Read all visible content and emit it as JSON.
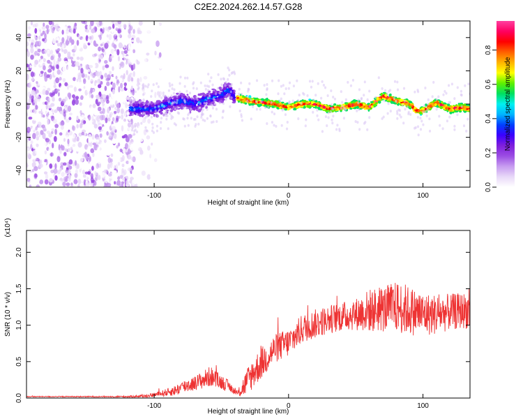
{
  "figure_title": "C2E2.2024.262.14.57.G28",
  "chart_data": [
    {
      "type": "heatmap",
      "xlabel": "Height of straight line (km)",
      "ylabel": "Frequency (Hz)",
      "xlim": [
        -195,
        135
      ],
      "ylim": [
        -50,
        50
      ],
      "xticks": [
        -100,
        0,
        100
      ],
      "yticks": [
        -40,
        -20,
        0,
        20,
        40
      ],
      "colorbar": {
        "label": "Normalized spectral amplitude",
        "range": [
          0,
          0.97
        ],
        "ticks": [
          "0.0",
          "0.2",
          "0.4",
          "0.6",
          "0.8"
        ],
        "colormap": [
          "#ffffff",
          "#e8d8f8",
          "#c79cf0",
          "#9b4de3",
          "#7f1fdc",
          "#3b00ff",
          "#0040ff",
          "#00b4ff",
          "#00f0f0",
          "#00e060",
          "#5ef000",
          "#ffff00",
          "#ffb400",
          "#ff6000",
          "#ff0000",
          "#ff0060",
          "#ff40a0"
        ]
      },
      "regions": [
        {
          "name": "noise",
          "x": [
            -195,
            -115
          ],
          "freq_spread": [
            -50,
            50
          ],
          "amplitude": [
            0.0,
            0.2
          ]
        },
        {
          "name": "sparse",
          "x": [
            -120,
            -95
          ],
          "freq_spread": [
            -50,
            50
          ],
          "amplitude": [
            0.0,
            0.1
          ]
        },
        {
          "name": "onset",
          "x": [
            -118,
            -40
          ],
          "freq_center": [
            -3,
            12
          ],
          "amplitude": [
            0.15,
            0.45
          ]
        },
        {
          "name": "track",
          "x": [
            -38,
            135
          ],
          "freq_center": [
            -5,
            5
          ],
          "amplitude": [
            0.5,
            0.97
          ]
        }
      ],
      "ridge": {
        "x": [
          -115,
          -100,
          -90,
          -80,
          -70,
          -60,
          -50,
          -45,
          -40,
          -35,
          -30,
          -20,
          -10,
          0,
          10,
          20,
          30,
          40,
          50,
          60,
          70,
          80,
          90,
          95,
          100,
          110,
          120,
          130,
          135
        ],
        "freq": [
          -3,
          -3,
          0,
          2,
          0,
          3,
          5,
          9,
          4,
          3,
          2,
          1,
          0,
          -2,
          0,
          0,
          -3,
          -2,
          0,
          -2,
          5,
          2,
          0,
          -4,
          -4,
          1,
          -3,
          -2,
          -3
        ]
      }
    },
    {
      "type": "line",
      "xlabel": "Height of straight line (km)",
      "ylabel": "SNR (10 * v/v)",
      "yscale_label": "(x10⁴)",
      "xlim": [
        -195,
        135
      ],
      "ylim": [
        0,
        2.3
      ],
      "xticks": [
        -100,
        0,
        100
      ],
      "yticks": [
        "0.0",
        "0.5",
        "1.0",
        "1.5",
        "2.0"
      ],
      "color": "#ee3333",
      "series": [
        {
          "x": [
            -195,
            -170,
            -140,
            -120,
            -105,
            -95,
            -85,
            -80,
            -75,
            -70,
            -65,
            -60,
            -58,
            -55,
            -50,
            -45,
            -40,
            -38,
            -35,
            -30,
            -25,
            -20,
            -15,
            -10,
            -5,
            0,
            5,
            10,
            20,
            30,
            40,
            50,
            60,
            70,
            80,
            85,
            90,
            100,
            110,
            120,
            130,
            135
          ],
          "mean": [
            0.02,
            0.02,
            0.02,
            0.02,
            0.03,
            0.06,
            0.1,
            0.14,
            0.18,
            0.2,
            0.24,
            0.28,
            0.3,
            0.26,
            0.22,
            0.17,
            0.09,
            0.06,
            0.12,
            0.25,
            0.38,
            0.48,
            0.58,
            0.68,
            0.72,
            0.76,
            0.85,
            0.95,
            1.02,
            1.08,
            1.12,
            1.15,
            1.2,
            1.22,
            1.25,
            1.23,
            1.2,
            1.15,
            1.15,
            1.18,
            1.2,
            1.2
          ],
          "noise": [
            0.005,
            0.006,
            0.008,
            0.01,
            0.02,
            0.04,
            0.07,
            0.09,
            0.1,
            0.1,
            0.12,
            0.14,
            0.14,
            0.12,
            0.1,
            0.08,
            0.04,
            0.03,
            0.12,
            0.2,
            0.22,
            0.22,
            0.22,
            0.2,
            0.2,
            0.2,
            0.2,
            0.2,
            0.2,
            0.2,
            0.2,
            0.22,
            0.3,
            0.32,
            0.35,
            0.36,
            0.34,
            0.3,
            0.28,
            0.25,
            0.25,
            0.25
          ]
        }
      ]
    }
  ]
}
